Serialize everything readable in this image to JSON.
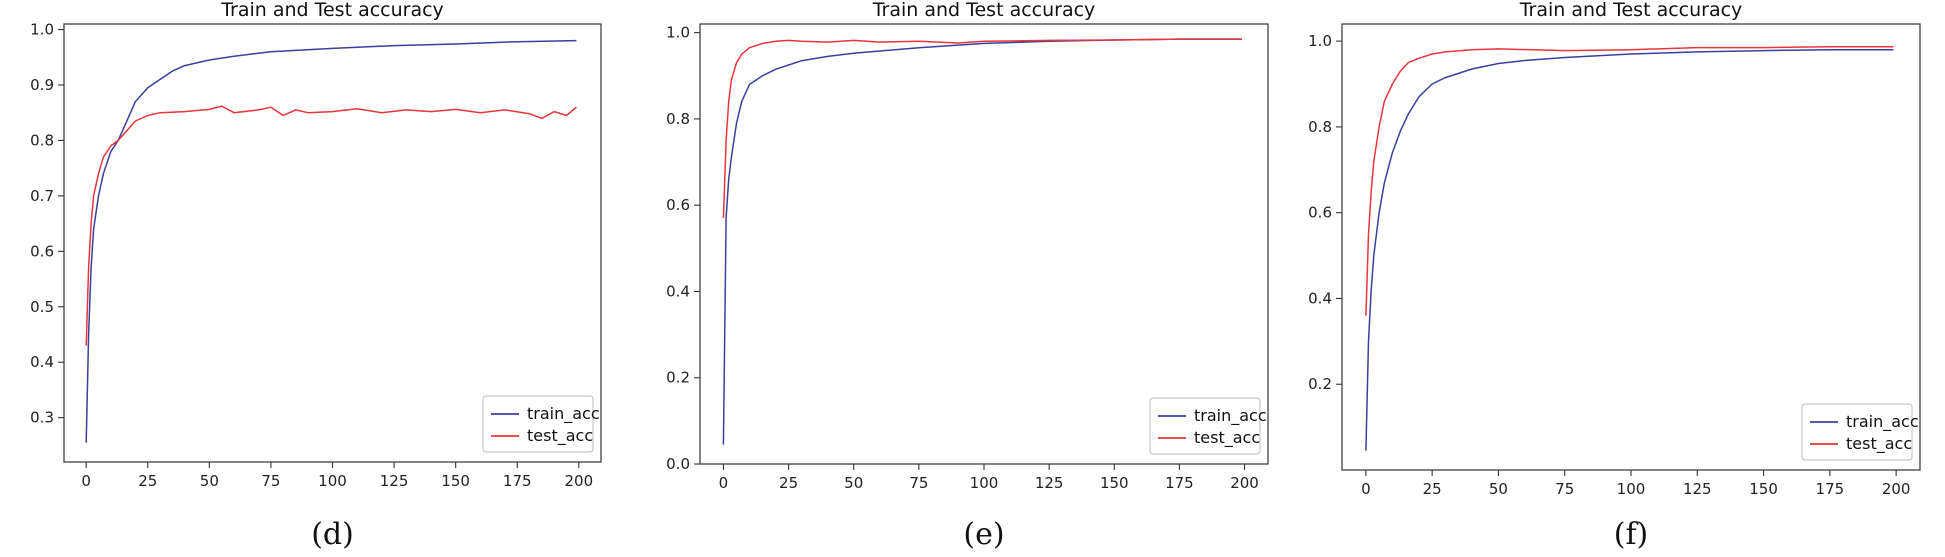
{
  "chart_data": [
    {
      "type": "line",
      "title": "Train and Test accuracy",
      "caption": "(d)",
      "xlabel": "",
      "ylabel": "",
      "xlim": [
        -9,
        209
      ],
      "ylim": [
        0.22,
        1.01
      ],
      "x_ticks": [
        0,
        25,
        50,
        75,
        100,
        125,
        150,
        175,
        200
      ],
      "y_ticks": [
        0.3,
        0.4,
        0.5,
        0.6,
        0.7,
        0.8,
        0.9,
        1.0
      ],
      "y_tick_labels": [
        "0.3",
        "0.4",
        "0.5",
        "0.6",
        "0.7",
        "0.8",
        "0.9",
        "1.0"
      ],
      "legend_position": "lower-right",
      "grid": false,
      "series": [
        {
          "name": "train_acc",
          "color": "#3b3f9e",
          "x": [
            0,
            1,
            2,
            3,
            5,
            7,
            10,
            13,
            16,
            20,
            25,
            30,
            35,
            40,
            50,
            60,
            75,
            100,
            125,
            150,
            175,
            199
          ],
          "y": [
            0.255,
            0.45,
            0.57,
            0.64,
            0.7,
            0.74,
            0.78,
            0.8,
            0.83,
            0.87,
            0.895,
            0.91,
            0.925,
            0.935,
            0.945,
            0.952,
            0.96,
            0.966,
            0.971,
            0.974,
            0.978,
            0.98
          ]
        },
        {
          "name": "test_acc",
          "color": "#e8363a",
          "x": [
            0,
            1,
            2,
            3,
            5,
            7,
            10,
            13,
            16,
            20,
            25,
            30,
            40,
            50,
            55,
            60,
            70,
            75,
            80,
            85,
            90,
            100,
            110,
            120,
            130,
            140,
            150,
            160,
            170,
            180,
            185,
            190,
            195,
            199
          ],
          "y": [
            0.43,
            0.57,
            0.65,
            0.7,
            0.74,
            0.77,
            0.79,
            0.8,
            0.815,
            0.835,
            0.845,
            0.85,
            0.852,
            0.856,
            0.862,
            0.85,
            0.855,
            0.86,
            0.845,
            0.855,
            0.85,
            0.852,
            0.857,
            0.85,
            0.855,
            0.852,
            0.856,
            0.85,
            0.855,
            0.848,
            0.84,
            0.852,
            0.845,
            0.86
          ]
        }
      ]
    },
    {
      "type": "line",
      "title": "Train and Test accuracy",
      "caption": "(e)",
      "xlabel": "",
      "ylabel": "",
      "xlim": [
        -9,
        209
      ],
      "ylim": [
        0.0,
        1.02
      ],
      "x_ticks": [
        0,
        25,
        50,
        75,
        100,
        125,
        150,
        175,
        200
      ],
      "y_ticks": [
        0.0,
        0.2,
        0.4,
        0.6,
        0.8,
        1.0
      ],
      "y_tick_labels": [
        "0.0",
        "0.2",
        "0.4",
        "0.6",
        "0.8",
        "1.0"
      ],
      "legend_position": "lower-right",
      "grid": false,
      "series": [
        {
          "name": "train_acc",
          "color": "#3b3f9e",
          "x": [
            0,
            1,
            2,
            3,
            5,
            7,
            10,
            15,
            20,
            25,
            30,
            40,
            50,
            75,
            100,
            125,
            150,
            175,
            199
          ],
          "y": [
            0.045,
            0.57,
            0.66,
            0.71,
            0.79,
            0.84,
            0.88,
            0.9,
            0.915,
            0.925,
            0.935,
            0.945,
            0.952,
            0.965,
            0.975,
            0.98,
            0.983,
            0.985,
            0.985
          ]
        },
        {
          "name": "test_acc",
          "color": "#e8363a",
          "x": [
            0,
            1,
            2,
            3,
            5,
            7,
            10,
            15,
            20,
            25,
            30,
            40,
            50,
            60,
            75,
            90,
            100,
            125,
            150,
            175,
            199
          ],
          "y": [
            0.57,
            0.75,
            0.84,
            0.89,
            0.93,
            0.95,
            0.965,
            0.975,
            0.98,
            0.982,
            0.98,
            0.978,
            0.982,
            0.978,
            0.98,
            0.976,
            0.98,
            0.982,
            0.983,
            0.985,
            0.985
          ]
        }
      ]
    },
    {
      "type": "line",
      "title": "Train and Test accuracy",
      "caption": "(f)",
      "xlabel": "",
      "ylabel": "",
      "xlim": [
        -9,
        209
      ],
      "ylim": [
        0.0,
        1.04
      ],
      "x_ticks": [
        0,
        25,
        50,
        75,
        100,
        125,
        150,
        175,
        200
      ],
      "y_ticks": [
        0.2,
        0.4,
        0.6,
        0.8,
        1.0
      ],
      "y_tick_labels": [
        "0.2",
        "0.4",
        "0.6",
        "0.8",
        "1.0"
      ],
      "legend_position": "lower-right",
      "grid": false,
      "series": [
        {
          "name": "train_acc",
          "color": "#3b3f9e",
          "x": [
            0,
            1,
            2,
            3,
            5,
            7,
            10,
            13,
            16,
            20,
            25,
            30,
            40,
            50,
            60,
            75,
            100,
            125,
            150,
            175,
            199
          ],
          "y": [
            0.045,
            0.3,
            0.42,
            0.5,
            0.6,
            0.67,
            0.74,
            0.79,
            0.83,
            0.87,
            0.9,
            0.915,
            0.935,
            0.948,
            0.955,
            0.962,
            0.97,
            0.975,
            0.978,
            0.98,
            0.98
          ]
        },
        {
          "name": "test_acc",
          "color": "#e8363a",
          "x": [
            0,
            1,
            2,
            3,
            5,
            7,
            10,
            13,
            16,
            20,
            25,
            30,
            40,
            50,
            75,
            100,
            125,
            150,
            175,
            199
          ],
          "y": [
            0.36,
            0.55,
            0.65,
            0.72,
            0.8,
            0.86,
            0.9,
            0.93,
            0.95,
            0.96,
            0.97,
            0.975,
            0.98,
            0.982,
            0.978,
            0.98,
            0.985,
            0.985,
            0.987,
            0.987
          ]
        }
      ]
    }
  ]
}
